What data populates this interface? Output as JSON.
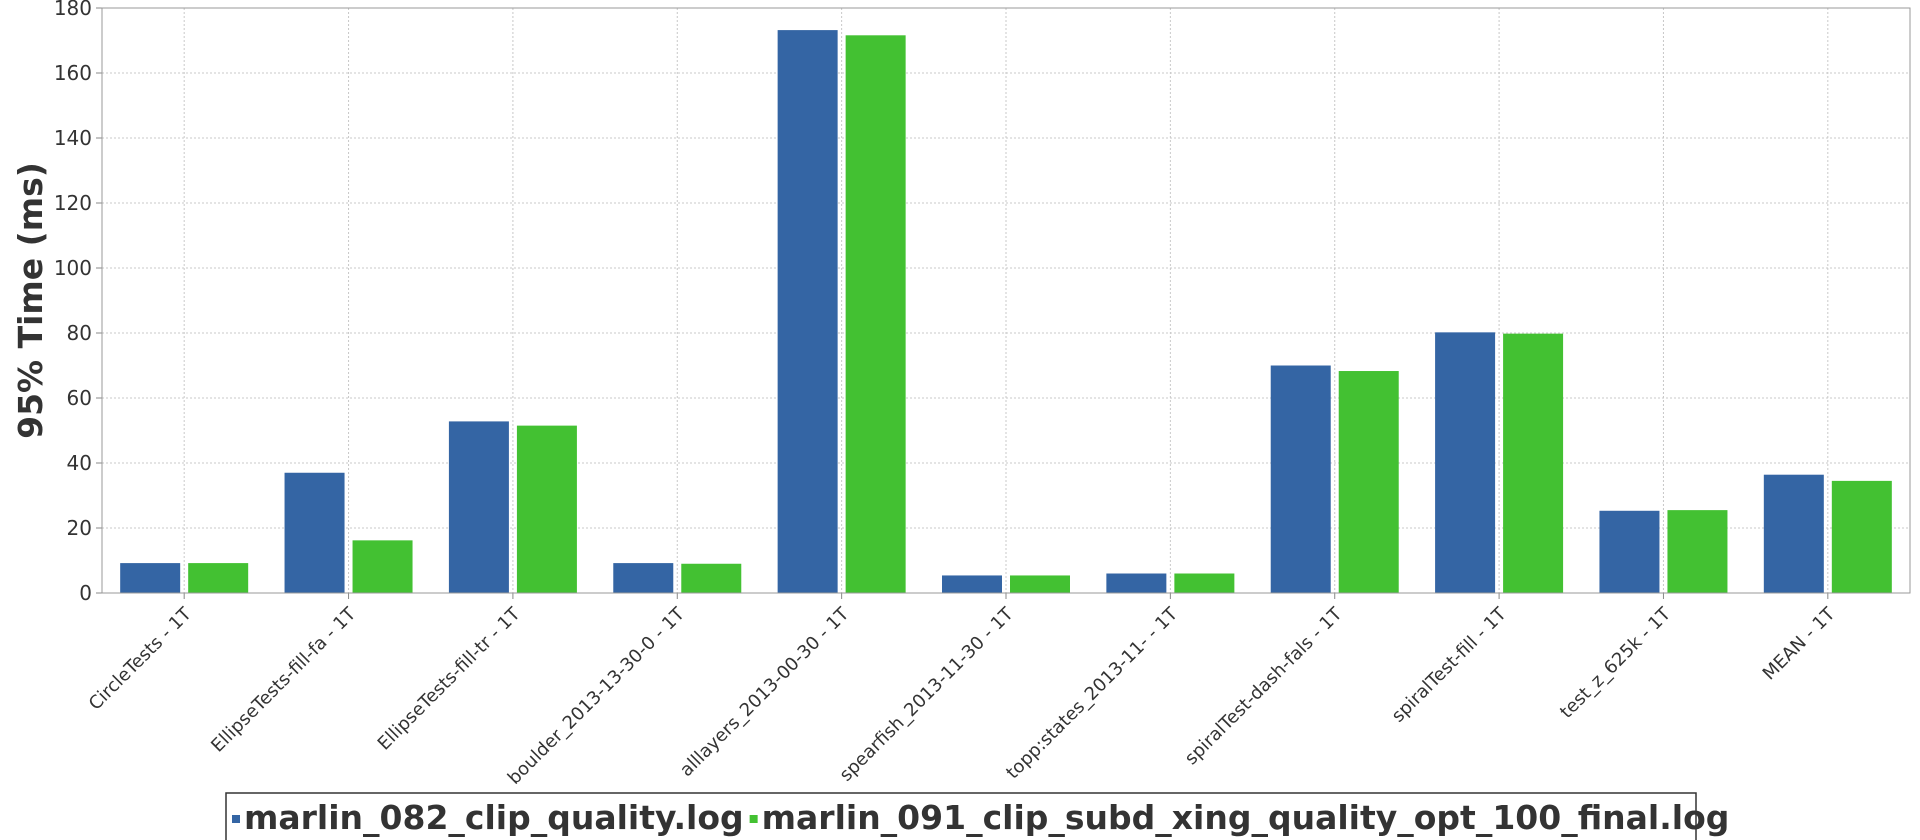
{
  "chart_data": {
    "type": "bar",
    "title": "",
    "xlabel": "",
    "ylabel": "95% Time (ms)",
    "ylim": [
      0,
      180
    ],
    "yticks": [
      0,
      20,
      40,
      60,
      80,
      100,
      120,
      140,
      160,
      180
    ],
    "grid": true,
    "legend_position": "bottom",
    "categories": [
      "CircleTests - 1T",
      "EllipseTests-fill-fa - 1T",
      "EllipseTests-fill-tr - 1T",
      "boulder_2013-13-30-0 - 1T",
      "alllayers_2013-00-30 - 1T",
      "spearfish_2013-11-30 - 1T",
      "topp:states_2013-11- - 1T",
      "spiralTest-dash-fals - 1T",
      "spiralTest-fill - 1T",
      "test_z_625k - 1T",
      "MEAN - 1T"
    ],
    "series": [
      {
        "name": "marlin_082_clip_quality.log",
        "color": "#3465a4",
        "values": [
          9.2,
          37,
          52.8,
          9.2,
          173.2,
          5.4,
          6,
          70,
          80.2,
          25.3,
          36.4
        ]
      },
      {
        "name": "marlin_091_clip_subd_xing_quality_opt_100_final.log",
        "color": "#43c132",
        "values": [
          9.2,
          16.2,
          51.5,
          9,
          171.6,
          5.4,
          6,
          68.3,
          79.8,
          25.5,
          34.5
        ]
      }
    ]
  }
}
